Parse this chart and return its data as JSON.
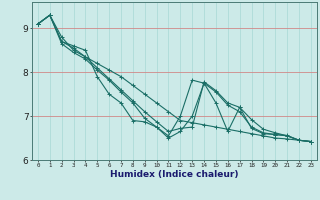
{
  "xlabel": "Humidex (Indice chaleur)",
  "background_color": "#cceae8",
  "grid_color_v": "#b0d8d5",
  "grid_color_h": "#e8a0a0",
  "line_color": "#1a6e66",
  "xlim": [
    -0.5,
    23.5
  ],
  "ylim": [
    6.0,
    9.6
  ],
  "yticks": [
    6,
    7,
    8,
    9
  ],
  "xticks": [
    0,
    1,
    2,
    3,
    4,
    5,
    6,
    7,
    8,
    9,
    10,
    11,
    12,
    13,
    14,
    15,
    16,
    17,
    18,
    19,
    20,
    21,
    22,
    23
  ],
  "series": [
    [
      9.1,
      9.3,
      8.7,
      8.6,
      8.5,
      7.9,
      7.5,
      7.3,
      6.9,
      6.87,
      6.75,
      6.55,
      7.0,
      7.82,
      7.75,
      7.3,
      6.65,
      7.2,
      6.72,
      6.6,
      6.58,
      6.56,
      6.45,
      6.42
    ],
    [
      9.1,
      9.3,
      8.8,
      8.5,
      8.35,
      8.1,
      7.85,
      7.6,
      7.35,
      7.1,
      6.87,
      6.65,
      6.72,
      6.75,
      7.78,
      7.58,
      7.3,
      7.2,
      6.92,
      6.7,
      6.62,
      6.55,
      6.45,
      6.42
    ],
    [
      9.1,
      9.3,
      8.7,
      8.55,
      8.35,
      8.2,
      8.05,
      7.9,
      7.7,
      7.5,
      7.3,
      7.1,
      6.9,
      6.85,
      6.8,
      6.75,
      6.7,
      6.65,
      6.6,
      6.55,
      6.5,
      6.48,
      6.45,
      6.42
    ],
    [
      9.1,
      9.3,
      8.65,
      8.45,
      8.3,
      8.05,
      7.82,
      7.55,
      7.3,
      6.95,
      6.75,
      6.5,
      6.65,
      7.0,
      7.75,
      7.55,
      7.25,
      7.1,
      6.75,
      6.62,
      6.58,
      6.55,
      6.45,
      6.42
    ]
  ]
}
